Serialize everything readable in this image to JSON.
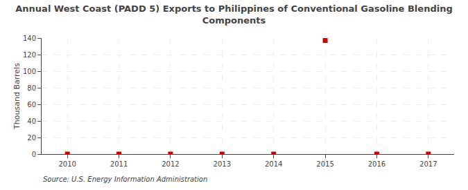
{
  "chart_data": {
    "type": "scatter",
    "title": "Annual West Coast (PADD 5) Exports to Philippines of Conventional Gasoline Blending\nComponents",
    "y_label": "Thousand Barrels",
    "annotations": [
      "Source: U.S. Energy Information Administration"
    ],
    "x": [
      2010,
      2011,
      2012,
      2013,
      2014,
      2015,
      2016,
      2017
    ],
    "values": [
      0,
      0,
      0,
      0,
      0,
      137,
      0,
      0
    ],
    "color": "#cc0000",
    "marker": "square",
    "xlim": [
      2009.5,
      2017.5
    ],
    "ylim": [
      0,
      140
    ],
    "xticks": [
      2010,
      2011,
      2012,
      2013,
      2014,
      2015,
      2016,
      2017
    ],
    "yticks": [
      0,
      20,
      40,
      60,
      80,
      100,
      120,
      140
    ],
    "grid": true
  }
}
